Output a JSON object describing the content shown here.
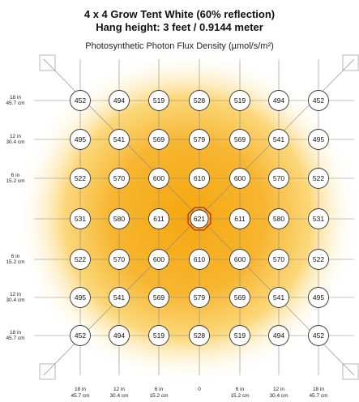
{
  "title_line1": "4 x 4 Grow Tent White (60% reflection)",
  "title_line2": "Hang height: 3 feet / 0.9144 meter",
  "subtitle": "Photosynthetic Photon Flux Density (µmol/s/m²)",
  "colors": {
    "heat_core": "#f5a80f",
    "heat_mid": "#fbd36b",
    "heat_edge": "#ffffff",
    "grid_line": "#888888",
    "highlight_ring": "#b02a2a"
  },
  "y_labels": [
    {
      "top": "18 in",
      "bottom": "45.7 cm"
    },
    {
      "top": "12 in",
      "bottom": "30.4 cm"
    },
    {
      "top": "6 in",
      "bottom": "15.2 cm"
    },
    {
      "top": "",
      "bottom": ""
    },
    {
      "top": "6 in",
      "bottom": "15.2 cm"
    },
    {
      "top": "12 in",
      "bottom": "30.4 cm"
    },
    {
      "top": "18 in",
      "bottom": "45.7 cm"
    }
  ],
  "x_labels": [
    {
      "top": "18 in",
      "bottom": "45.7 cm"
    },
    {
      "top": "12 in",
      "bottom": "30.4 cm"
    },
    {
      "top": "6 in",
      "bottom": "15.2 cm"
    },
    {
      "top": "0",
      "bottom": ""
    },
    {
      "top": "6 in",
      "bottom": "15.2 cm"
    },
    {
      "top": "12 in",
      "bottom": "30.4 cm"
    },
    {
      "top": "18 in",
      "bottom": "45.7 cm"
    }
  ],
  "ppfd_grid": [
    [
      452,
      494,
      519,
      528,
      519,
      494,
      452
    ],
    [
      495,
      541,
      569,
      579,
      569,
      541,
      495
    ],
    [
      522,
      570,
      600,
      610,
      600,
      570,
      522
    ],
    [
      531,
      580,
      611,
      621,
      611,
      580,
      531
    ],
    [
      522,
      570,
      600,
      610,
      600,
      570,
      522
    ],
    [
      495,
      541,
      569,
      579,
      569,
      541,
      495
    ],
    [
      452,
      494,
      519,
      528,
      519,
      494,
      452
    ]
  ],
  "highlight_center": true
}
